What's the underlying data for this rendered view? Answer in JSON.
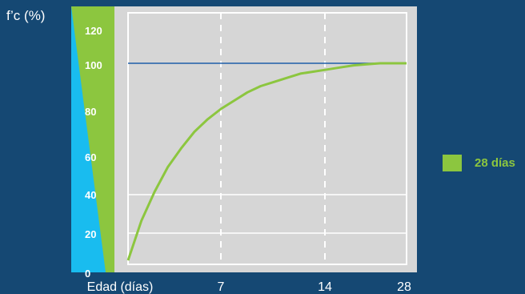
{
  "chart_data": {
    "type": "line",
    "ylabel": "f’c (%)",
    "xlabel": "Edad (días)",
    "x_ticks": [
      "7",
      "14",
      "28"
    ],
    "y_ticks": [
      0,
      20,
      40,
      60,
      80,
      100,
      120
    ],
    "ylim": [
      0,
      130
    ],
    "reference_line": {
      "y": 100
    },
    "series": [
      {
        "name": "28 días",
        "color": "#8cc63f",
        "x": [
          0,
          1,
          2,
          3,
          4,
          5,
          6,
          7,
          8,
          9,
          10,
          11,
          12,
          13,
          14,
          15,
          16,
          17,
          18,
          19,
          20,
          21
        ],
        "y": [
          5,
          24,
          38,
          50,
          59,
          67,
          73,
          78,
          82,
          86,
          89,
          91,
          93,
          95,
          96,
          97,
          98,
          99,
          99.5,
          100,
          100,
          100
        ]
      }
    ],
    "colors": {
      "background": "#154873",
      "plot_area": "#d6d6d6",
      "reference_line": "#1f5fa8",
      "blue_band": "#19bcef",
      "green_band": "#8cc63f"
    }
  }
}
